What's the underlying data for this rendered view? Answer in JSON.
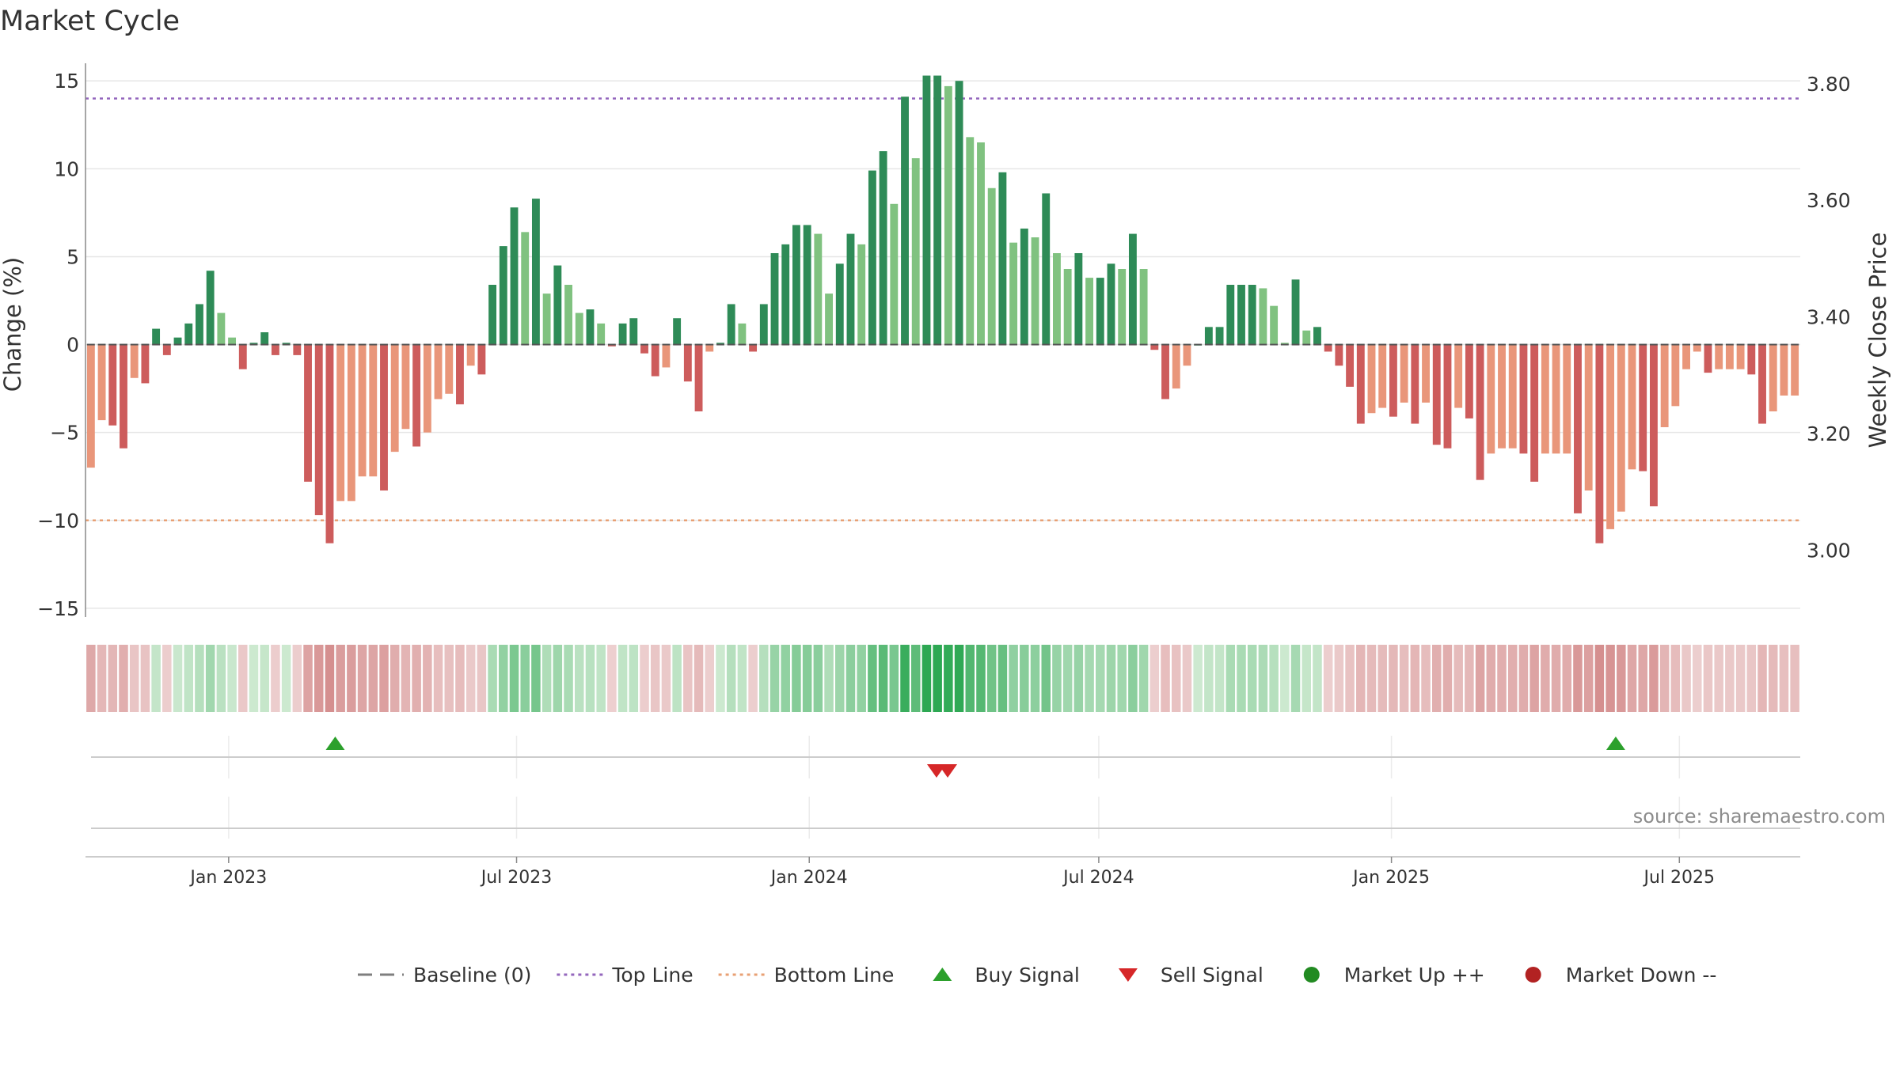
{
  "chart_data": {
    "type": "bar",
    "title": "Market Cycle",
    "ylabel": "Change (%)",
    "y2label": "Weekly Close Price",
    "ylim": [
      -15.5,
      16
    ],
    "yticks": [
      15,
      10,
      5,
      0,
      -5,
      -10,
      -15
    ],
    "ytick_labels": [
      "15",
      "10",
      "5",
      "0",
      "−5",
      "−10",
      "−15"
    ],
    "y2lim": [
      2.885,
      3.835
    ],
    "y2ticks": [
      3.8,
      3.6,
      3.4,
      3.2,
      3.0
    ],
    "y2tick_labels": [
      "3.80",
      "3.60",
      "3.40",
      "3.20",
      "3.00"
    ],
    "x_start": "2022-10-03",
    "x_end": "2025-09-15",
    "xticks": [
      {
        "date": "2023-01-01",
        "label": "Jan 2023"
      },
      {
        "date": "2023-07-01",
        "label": "Jul 2023"
      },
      {
        "date": "2024-01-01",
        "label": "Jan 2024"
      },
      {
        "date": "2024-07-01",
        "label": "Jul 2024"
      },
      {
        "date": "2025-01-01",
        "label": "Jan 2025"
      },
      {
        "date": "2025-07-01",
        "label": "Jul 2025"
      }
    ],
    "baseline": 0,
    "top_line": 14,
    "bottom_line": -10,
    "values": [
      -7.0,
      -4.3,
      -4.6,
      -5.9,
      -1.9,
      -2.2,
      0.9,
      -0.6,
      0.4,
      1.2,
      2.3,
      4.2,
      1.8,
      0.4,
      -1.4,
      0.1,
      0.7,
      -0.6,
      0.1,
      -0.6,
      -7.8,
      -9.7,
      -11.3,
      -8.9,
      -8.9,
      -7.5,
      -7.5,
      -8.3,
      -6.1,
      -4.8,
      -5.8,
      -5.0,
      -3.1,
      -2.8,
      -3.4,
      -1.2,
      -1.7,
      3.4,
      5.6,
      7.8,
      6.4,
      8.3,
      2.9,
      4.5,
      3.4,
      1.8,
      2.0,
      1.2,
      -0.1,
      1.2,
      1.5,
      -0.5,
      -1.8,
      -1.3,
      1.5,
      -2.1,
      -3.8,
      -0.4,
      0.1,
      2.3,
      1.2,
      -0.4,
      2.3,
      5.2,
      5.7,
      6.8,
      6.8,
      6.3,
      2.9,
      4.6,
      6.3,
      5.7,
      9.9,
      11.0,
      8.0,
      14.1,
      10.6,
      15.3,
      15.3,
      14.7,
      15.0,
      11.8,
      11.5,
      8.9,
      9.8,
      5.8,
      6.6,
      6.1,
      8.6,
      5.2,
      4.3,
      5.2,
      3.8,
      3.8,
      4.6,
      4.3,
      6.3,
      4.3,
      -0.3,
      -3.1,
      -2.5,
      -1.2,
      0.0,
      1.0,
      1.0,
      3.4,
      3.4,
      3.4,
      3.2,
      2.2,
      0.1,
      3.7,
      0.8,
      1.0,
      -0.4,
      -1.2,
      -2.4,
      -4.5,
      -3.9,
      -3.6,
      -4.1,
      -3.3,
      -4.5,
      -3.3,
      -5.7,
      -5.9,
      -3.6,
      -4.2,
      -7.7,
      -6.2,
      -5.9,
      -5.9,
      -6.2,
      -7.8,
      -6.2,
      -6.2,
      -6.2,
      -9.6,
      -8.3,
      -11.3,
      -10.5,
      -9.5,
      -7.1,
      -7.2,
      -9.2,
      -4.7,
      -3.5,
      -1.4,
      -0.4,
      -1.6,
      -1.4,
      -1.4,
      -1.4,
      -1.7,
      -4.5,
      -3.8,
      -2.9,
      -2.9
    ],
    "signals": [
      {
        "type": "buy",
        "date": "2023-03-06"
      },
      {
        "type": "sell",
        "date": "2024-03-18"
      },
      {
        "type": "sell",
        "date": "2024-03-25"
      },
      {
        "type": "buy",
        "date": "2025-05-19"
      }
    ],
    "source_text": "source: sharemaestro.com",
    "legend_position": "bottom",
    "legend": [
      {
        "kind": "dash",
        "label": "Baseline (0)",
        "color": "#7f7f7f"
      },
      {
        "kind": "dot-line",
        "label": "Top Line",
        "color": "#9467bd"
      },
      {
        "kind": "dot-line",
        "label": "Bottom Line",
        "color": "#e8a074"
      },
      {
        "kind": "tri-up",
        "label": "Buy Signal",
        "color": "#2ca02c"
      },
      {
        "kind": "tri-down",
        "label": "Sell Signal",
        "color": "#d62728"
      },
      {
        "kind": "circle",
        "label": "Market Up ++",
        "color": "#228b22"
      },
      {
        "kind": "circle",
        "label": "Market Down --",
        "color": "#b22222"
      }
    ],
    "colors": {
      "up_strong": "#2e8b57",
      "up_weak": "#80c280",
      "down_strong": "#cd5c5c",
      "down_weak": "#e9967a",
      "top_line": "#9467bd",
      "bottom_line": "#e8a074",
      "buy": "#2ca02c",
      "sell": "#d62728",
      "grid": "#e6e6e6"
    }
  }
}
